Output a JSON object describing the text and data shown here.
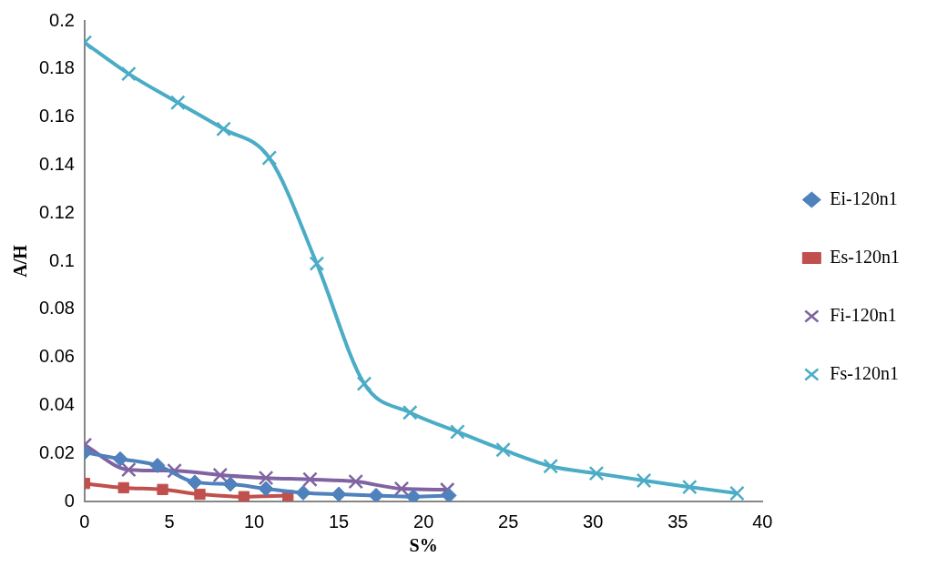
{
  "chart_data": {
    "type": "line",
    "xlabel": "S%",
    "ylabel": "A/H",
    "xlim": [
      0,
      40
    ],
    "xticks": [
      0,
      5,
      10,
      15,
      20,
      25,
      30,
      35,
      40
    ],
    "ylim": [
      0,
      0.2
    ],
    "yticks": [
      0,
      0.02,
      0.04,
      0.06,
      0.08,
      0.1,
      0.12,
      0.14,
      0.16,
      0.18,
      0.2
    ],
    "grid": false,
    "legend": "right",
    "series": [
      {
        "name": "Ei-120n1",
        "color": "#4f81bd",
        "marker": "diamond",
        "x": [
          0,
          2.1,
          4.3,
          6.5,
          8.6,
          10.7,
          12.9,
          15.0,
          17.2,
          19.4,
          21.5
        ],
        "values": [
          0.0204,
          0.0177,
          0.015,
          0.008,
          0.0072,
          0.0053,
          0.0036,
          0.003,
          0.0025,
          0.002,
          0.0025
        ]
      },
      {
        "name": "Es-120n1",
        "color": "#c0504d",
        "marker": "square",
        "x": [
          0,
          2.3,
          4.6,
          6.8,
          9.4,
          12.0
        ],
        "values": [
          0.0075,
          0.0057,
          0.005,
          0.003,
          0.002,
          0.0025
        ]
      },
      {
        "name": "Fi-120n1",
        "color": "#8064a2",
        "marker": "cross",
        "x": [
          0,
          2.6,
          5.3,
          8.0,
          10.7,
          13.3,
          16.0,
          18.7,
          21.4
        ],
        "values": [
          0.0235,
          0.0132,
          0.0128,
          0.011,
          0.0098,
          0.0092,
          0.0083,
          0.0053,
          0.0049
        ]
      },
      {
        "name": "Fs-120n1",
        "color": "#4bacc6",
        "marker": "cross",
        "x": [
          0,
          2.6,
          5.5,
          8.2,
          10.9,
          13.7,
          16.5,
          19.2,
          22,
          24.7,
          27.5,
          30.2,
          33,
          35.7,
          38.5
        ],
        "values": [
          0.191,
          0.178,
          0.166,
          0.155,
          0.143,
          0.099,
          0.049,
          0.037,
          0.029,
          0.0215,
          0.0147,
          0.0117,
          0.0087,
          0.006,
          0.0034
        ]
      }
    ]
  }
}
